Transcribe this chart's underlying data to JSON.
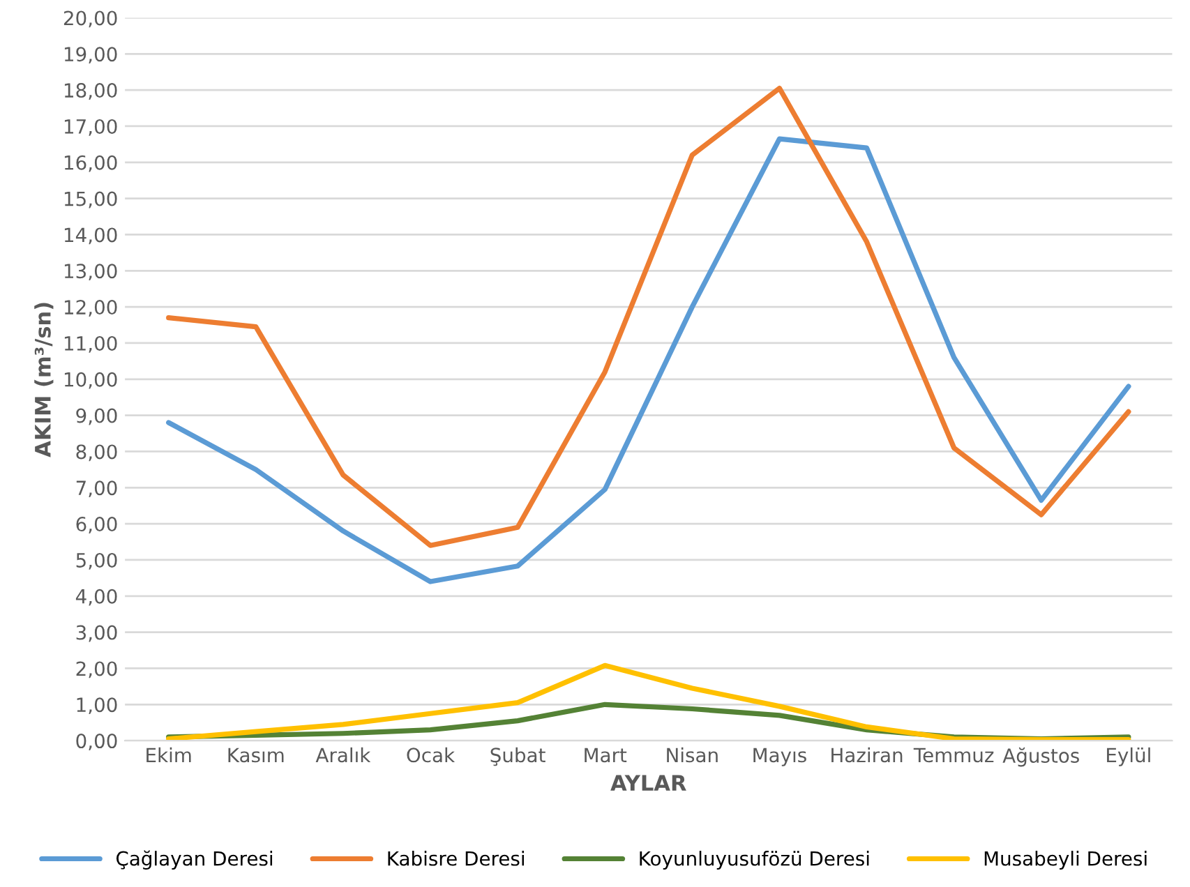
{
  "chart_data": {
    "type": "line",
    "xlabel": "AYLAR",
    "ylabel": "AKIM (m³/sn)",
    "categories": [
      "Ekim",
      "Kasım",
      "Aralık",
      "Ocak",
      "Şubat",
      "Mart",
      "Nisan",
      "Mayıs",
      "Haziran",
      "Temmuz",
      "Ağustos",
      "Eylül"
    ],
    "series": [
      {
        "name": "Çağlayan Deresi",
        "color": "#5b9bd5",
        "values": [
          8.8,
          7.5,
          5.8,
          4.4,
          4.83,
          6.95,
          12.0,
          16.65,
          16.4,
          10.6,
          6.65,
          9.8
        ]
      },
      {
        "name": "Kabisre Deresi",
        "color": "#ed7d31",
        "values": [
          11.7,
          11.45,
          7.35,
          5.4,
          5.9,
          10.2,
          16.2,
          18.05,
          13.8,
          8.1,
          6.25,
          9.1
        ]
      },
      {
        "name": "Koyunluyusufözü Deresi",
        "color": "#548235",
        "values": [
          0.1,
          0.15,
          0.2,
          0.3,
          0.55,
          1.0,
          0.88,
          0.7,
          0.3,
          0.1,
          0.05,
          0.1
        ]
      },
      {
        "name": "Musabeyli Deresi",
        "color": "#ffc000",
        "values": [
          0.05,
          0.25,
          0.45,
          0.75,
          1.05,
          2.08,
          1.45,
          0.95,
          0.38,
          0.05,
          0.03,
          0.03
        ]
      }
    ],
    "ylim": [
      0,
      20
    ],
    "yticks": [
      {
        "value": 0,
        "label": "0,00"
      },
      {
        "value": 1,
        "label": "1,00"
      },
      {
        "value": 2,
        "label": "2,00"
      },
      {
        "value": 3,
        "label": "3,00"
      },
      {
        "value": 4,
        "label": "4,00"
      },
      {
        "value": 5,
        "label": "5,00"
      },
      {
        "value": 6,
        "label": "6,00"
      },
      {
        "value": 7,
        "label": "7,00"
      },
      {
        "value": 8,
        "label": "8,00"
      },
      {
        "value": 9,
        "label": "9,00"
      },
      {
        "value": 10,
        "label": "10,00"
      },
      {
        "value": 11,
        "label": "11,00"
      },
      {
        "value": 12,
        "label": "12,00"
      },
      {
        "value": 13,
        "label": "13,00"
      },
      {
        "value": 14,
        "label": "14,00"
      },
      {
        "value": 15,
        "label": "15,00"
      },
      {
        "value": 16,
        "label": "16,00"
      },
      {
        "value": 17,
        "label": "17,00"
      },
      {
        "value": 18,
        "label": "18,00"
      },
      {
        "value": 19,
        "label": "19,00"
      },
      {
        "value": 20,
        "label": "20,00"
      }
    ],
    "grid": "y",
    "legend": "bottom",
    "marker": "none",
    "line_style": "solid"
  }
}
